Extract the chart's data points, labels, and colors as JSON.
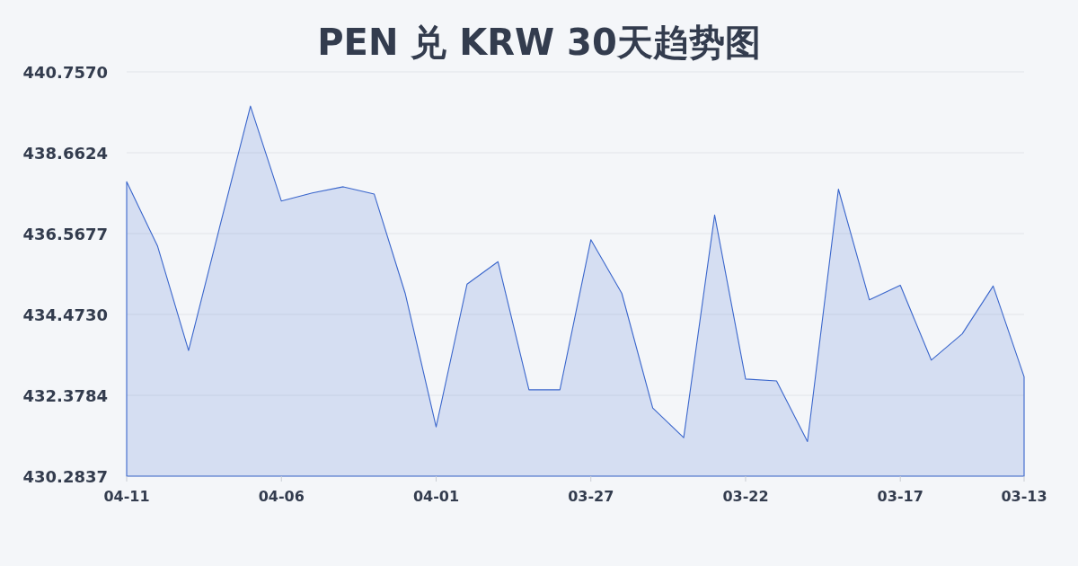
{
  "chart_data": {
    "type": "area",
    "title": "PEN 兑 KRW 30天趋势图",
    "categories": [
      "04-11",
      null,
      null,
      null,
      null,
      "04-06",
      null,
      null,
      null,
      null,
      "04-01",
      null,
      null,
      null,
      null,
      "03-27",
      null,
      null,
      null,
      null,
      "03-22",
      null,
      null,
      null,
      null,
      "03-17",
      null,
      null,
      null,
      "03-13"
    ],
    "series": [
      {
        "color": "#3a66cc",
        "values": [
          437.91,
          436.24,
          433.54,
          436.72,
          439.87,
          437.41,
          437.62,
          437.78,
          437.59,
          435.02,
          431.56,
          435.26,
          435.84,
          432.52,
          432.52,
          436.41,
          435.02,
          432.05,
          431.28,
          437.05,
          432.8,
          432.75,
          431.18,
          437.72,
          434.85,
          435.23,
          433.29,
          433.97,
          435.21,
          432.86
        ]
      }
    ],
    "ylim": [
      430.2837,
      440.757
    ],
    "yticks": [
      430.2837,
      432.3784,
      {
        "value": 434.473,
        "label": "434.4730"
      },
      436.5677,
      438.6624,
      {
        "value": 440.757,
        "label": "440.7570"
      }
    ],
    "grid": "y",
    "marker": "none"
  }
}
